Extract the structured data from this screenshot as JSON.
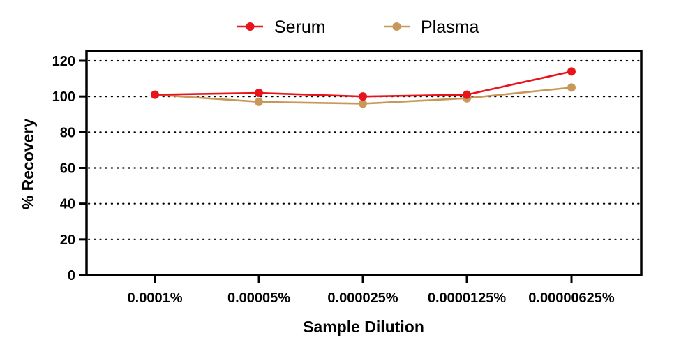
{
  "chart_data": {
    "type": "line",
    "title": "",
    "xlabel": "Sample Dilution",
    "ylabel": "% Recovery",
    "categories": [
      "0.0001%",
      "0.00005%",
      "0.000025%",
      "0.0000125%",
      "0.00000625%"
    ],
    "ylim": [
      0,
      120
    ],
    "yticks": [
      "0",
      "20",
      "40",
      "60",
      "80",
      "100",
      "120"
    ],
    "grid": "horizontal dotted",
    "legend_position": "top-center",
    "series": [
      {
        "name": "Serum",
        "color": "#e8141c",
        "values": [
          101,
          102,
          100,
          101,
          114
        ]
      },
      {
        "name": "Plasma",
        "color": "#c8975a",
        "values": [
          101,
          97,
          96,
          99,
          105
        ]
      }
    ]
  }
}
